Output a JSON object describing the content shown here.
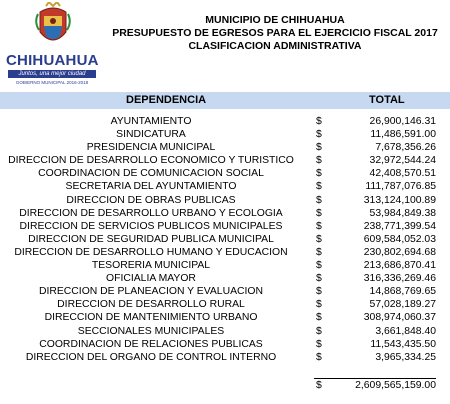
{
  "logo": {
    "name": "CHIHUAHUA",
    "tagline": "Juntos, una mejor ciudad",
    "sub": "GOBIERNO MUNICIPAL 2016-2018"
  },
  "header": {
    "line1": "MUNICIPIO DE CHIHUAHUA",
    "line2": "PRESUPUESTO DE EGRESOS PARA EL EJERCICIO FISCAL 2017",
    "line3": "CLASIFICACION ADMINISTRATIVA"
  },
  "table": {
    "col_dependencia": "DEPENDENCIA",
    "col_total": "TOTAL",
    "currency": "$",
    "rows": [
      {
        "dependencia": "AYUNTAMIENTO",
        "total": "26,900,146.31"
      },
      {
        "dependencia": "SINDICATURA",
        "total": "11,486,591.00"
      },
      {
        "dependencia": "PRESIDENCIA MUNICIPAL",
        "total": "7,678,356.26"
      },
      {
        "dependencia": "DIRECCION DE DESARROLLO ECONOMICO Y TURISTICO",
        "total": "32,972,544.24"
      },
      {
        "dependencia": "COORDINACION DE COMUNICACION SOCIAL",
        "total": "42,408,570.51"
      },
      {
        "dependencia": "SECRETARIA DEL AYUNTAMIENTO",
        "total": "111,787,076.85"
      },
      {
        "dependencia": "DIRECCION DE OBRAS PUBLICAS",
        "total": "313,124,100.89"
      },
      {
        "dependencia": "DIRECCION DE DESARROLLO URBANO Y ECOLOGIA",
        "total": "53,984,849.38"
      },
      {
        "dependencia": "DIRECCION DE SERVICIOS PUBLICOS MUNICIPALES",
        "total": "238,771,399.54"
      },
      {
        "dependencia": "DIRECCION DE SEGURIDAD PUBLICA MUNICIPAL",
        "total": "609,584,052.03"
      },
      {
        "dependencia": "DIRECCION DE DESARROLLO HUMANO Y EDUCACION",
        "total": "230,802,694.68"
      },
      {
        "dependencia": "TESORERIA MUNICIPAL",
        "total": "213,686,870.41"
      },
      {
        "dependencia": "OFICIALIA MAYOR",
        "total": "316,336,269.46"
      },
      {
        "dependencia": "DIRECCION DE PLANEACION Y EVALUACION",
        "total": "14,868,769.65"
      },
      {
        "dependencia": "DIRECCION DE DESARROLLO RURAL",
        "total": "57,028,189.27"
      },
      {
        "dependencia": "DIRECCION DE MANTENIMIENTO URBANO",
        "total": "308,974,060.37"
      },
      {
        "dependencia": "SECCIONALES MUNICIPALES",
        "total": "3,661,848.40"
      },
      {
        "dependencia": "COORDINACION DE RELACIONES PUBLICAS",
        "total": "11,543,435.50"
      },
      {
        "dependencia": "DIRECCION DEL ORGANO DE CONTROL INTERNO",
        "total": "3,965,334.25"
      }
    ],
    "grand_total": "2,609,565,159.00"
  },
  "colors": {
    "header_band": "#c6d9f1",
    "logo_blue": "#2a3d8f"
  }
}
